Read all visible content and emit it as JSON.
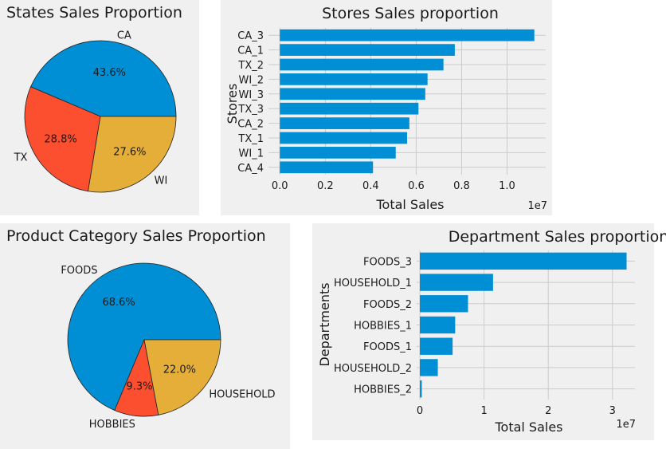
{
  "chart_data": [
    {
      "type": "pie",
      "title": "States Sales Proportion",
      "labels": [
        "CA",
        "TX",
        "WI"
      ],
      "values": [
        43.6,
        28.8,
        27.6
      ],
      "pct_labels": [
        "43.6%",
        "28.8%",
        "27.6%"
      ],
      "colors": [
        "#008fd5",
        "#fc4f30",
        "#e5ae38"
      ]
    },
    {
      "type": "bar",
      "orientation": "horizontal",
      "title": "Stores Sales proportion",
      "ylabel": "Stores",
      "xlabel": "Total Sales",
      "x_offset_text": "1e7",
      "categories": [
        "CA_3",
        "CA_1",
        "TX_2",
        "WI_2",
        "WI_3",
        "TX_3",
        "CA_2",
        "TX_1",
        "WI_1",
        "CA_4"
      ],
      "values": [
        1.12,
        0.77,
        0.72,
        0.65,
        0.64,
        0.61,
        0.57,
        0.56,
        0.51,
        0.41
      ],
      "xlim": [
        -0.05,
        1.17
      ],
      "xticks": [
        0.0,
        0.2,
        0.4,
        0.6,
        0.8,
        1.0
      ],
      "xtick_labels": [
        "0.0",
        "0.2",
        "0.4",
        "0.6",
        "0.8",
        "1.0"
      ],
      "color": "#008fd5"
    },
    {
      "type": "pie",
      "title": "Product Category Sales Proportion",
      "labels": [
        "FOODS",
        "HOBBIES",
        "HOUSEHOLD"
      ],
      "values": [
        68.6,
        9.3,
        22.0
      ],
      "pct_labels": [
        "68.6%",
        "9.3%",
        "22.0%"
      ],
      "colors": [
        "#008fd5",
        "#fc4f30",
        "#e5ae38"
      ]
    },
    {
      "type": "bar",
      "orientation": "horizontal",
      "title": "Department Sales proportion",
      "ylabel": "Departments",
      "xlabel": "Total Sales",
      "x_offset_text": "1e7",
      "categories": [
        "FOODS_3",
        "HOUSEHOLD_1",
        "FOODS_2",
        "HOBBIES_1",
        "FOODS_1",
        "HOUSEHOLD_2",
        "HOBBIES_2"
      ],
      "values": [
        3.22,
        1.14,
        0.75,
        0.55,
        0.51,
        0.28,
        0.03
      ],
      "xlim": [
        -0.05,
        3.35
      ],
      "xticks": [
        0,
        1,
        2,
        3
      ],
      "xtick_labels": [
        "0",
        "1",
        "2",
        "3"
      ],
      "color": "#008fd5"
    }
  ]
}
